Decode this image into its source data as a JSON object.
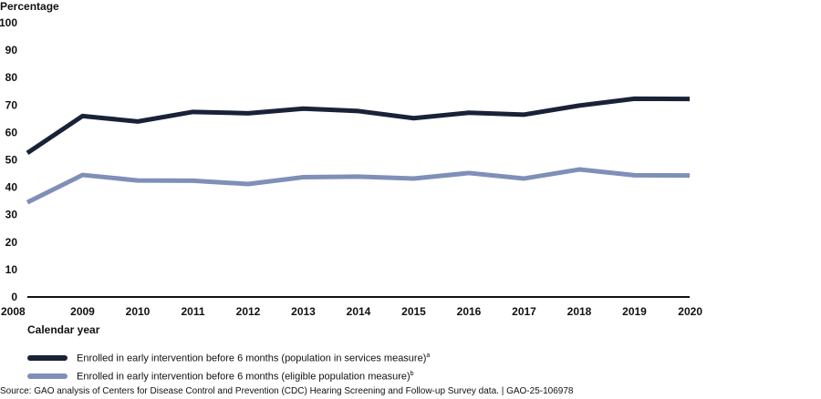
{
  "chart_data": {
    "type": "line",
    "ylabel": "Percentage",
    "xlabel": "Calendar year",
    "ylim": [
      0,
      100
    ],
    "yticks": [
      0,
      10,
      20,
      30,
      40,
      50,
      60,
      70,
      80,
      90,
      100
    ],
    "grid": false,
    "legend_position": "bottom-left",
    "x": [
      "2008",
      "2009",
      "2010",
      "2011",
      "2012",
      "2013",
      "2014",
      "2015",
      "2016",
      "2017",
      "2018",
      "2019",
      "2020"
    ],
    "series": [
      {
        "name": "Enrolled in early intervention before 6 months (population in services measure)",
        "note_marker": "a",
        "color": "#1a2238",
        "values": [
          52.5,
          66,
          64,
          67.5,
          67,
          68.7,
          67.8,
          65.2,
          67.2,
          66.5,
          69.8,
          72.3,
          72.2
        ]
      },
      {
        "name": "Enrolled in early intervention before 6 months (eligible population measure)",
        "note_marker": "b",
        "color": "#7f8fb8",
        "values": [
          34.5,
          44.5,
          42.5,
          42.4,
          41.2,
          43.7,
          43.9,
          43.2,
          45.2,
          43.2,
          46.5,
          44.4,
          44.3
        ]
      }
    ]
  },
  "source": "Source: GAO analysis of Centers for Disease Control and Prevention (CDC) Hearing Screening and Follow-up Survey data.  |  GAO-25-106978"
}
